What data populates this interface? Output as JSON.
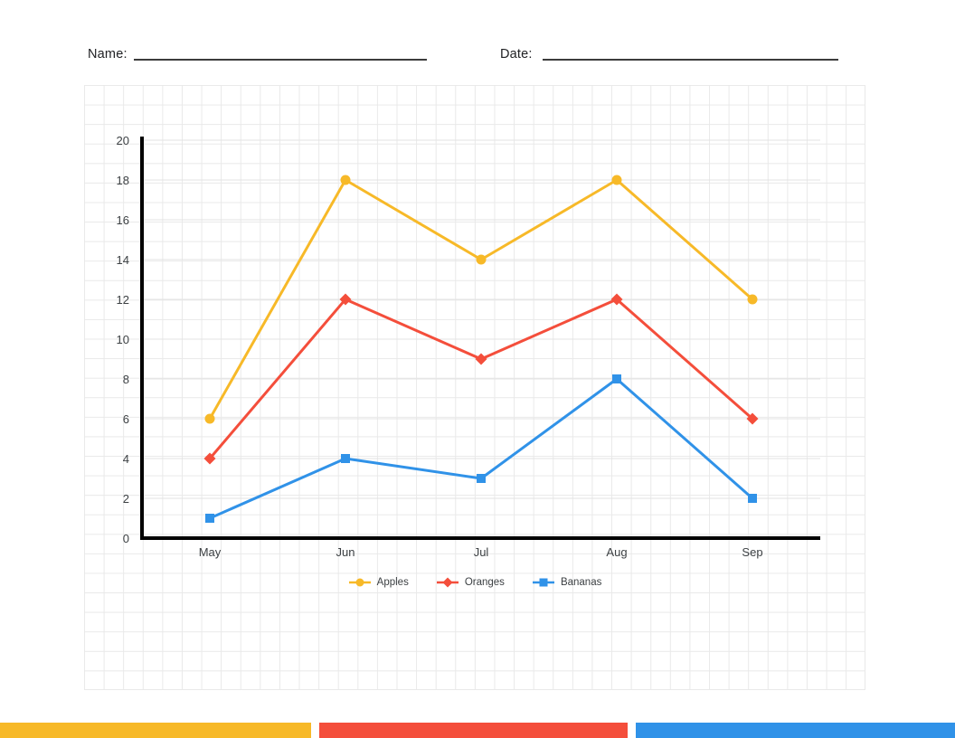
{
  "header": {
    "name_label": "Name:",
    "date_label": "Date:"
  },
  "chart_data": {
    "type": "line",
    "categories": [
      "May",
      "Jun",
      "Jul",
      "Aug",
      "Sep"
    ],
    "series": [
      {
        "name": "Apples",
        "marker": "circle",
        "color": "#F7B928",
        "values": [
          6,
          18,
          14,
          18,
          12
        ]
      },
      {
        "name": "Oranges",
        "marker": "diamond",
        "color": "#F44E3B",
        "values": [
          4,
          12,
          9,
          12,
          6
        ]
      },
      {
        "name": "Bananas",
        "marker": "square",
        "color": "#3092E8",
        "values": [
          1,
          4,
          3,
          8,
          2
        ]
      }
    ],
    "title": "",
    "xlabel": "",
    "ylabel": "",
    "ylim": [
      0,
      20
    ],
    "ytick_step": 2,
    "grid": true,
    "legend_position": "bottom",
    "axis_color": "#000000",
    "tick_label_color": "#3c4043",
    "gridline_color": "#e3e3e3"
  },
  "footer_bar": {
    "colors": [
      "#F7B928",
      "#F44E3B",
      "#3092E8"
    ]
  }
}
